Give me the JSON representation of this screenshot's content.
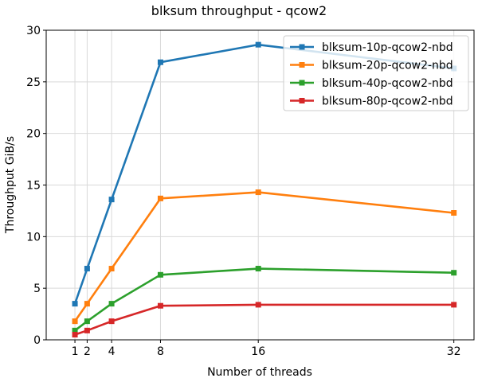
{
  "chart_data": {
    "type": "line",
    "title": "blksum throughput - qcow2",
    "xlabel": "Number of threads",
    "ylabel": "Throughput GiB/s",
    "x": [
      1,
      2,
      4,
      8,
      16,
      32
    ],
    "xticks": [
      1,
      2,
      4,
      8,
      16,
      32
    ],
    "xtick_labels": [
      "1",
      "2",
      "4",
      "8",
      "16",
      "32"
    ],
    "yticks": [
      0,
      5,
      10,
      15,
      20,
      25,
      30
    ],
    "ytick_labels": [
      "0",
      "5",
      "10",
      "15",
      "20",
      "25",
      "30"
    ],
    "xlim": [
      -1.35,
      33.65
    ],
    "ylim": [
      0,
      30
    ],
    "grid": true,
    "legend_position": "top-right",
    "series": [
      {
        "name": "blksum-10p-qcow2-nbd",
        "color": "#1f77b4",
        "values": [
          3.5,
          6.9,
          13.6,
          26.9,
          28.6,
          26.3
        ]
      },
      {
        "name": "blksum-20p-qcow2-nbd",
        "color": "#ff7f0e",
        "values": [
          1.8,
          3.5,
          6.9,
          13.7,
          14.3,
          12.3
        ]
      },
      {
        "name": "blksum-40p-qcow2-nbd",
        "color": "#2ca02c",
        "values": [
          0.9,
          1.8,
          3.5,
          6.3,
          6.9,
          6.5
        ]
      },
      {
        "name": "blksum-80p-qcow2-nbd",
        "color": "#d62728",
        "values": [
          0.5,
          0.9,
          1.8,
          3.3,
          3.4,
          3.4
        ]
      }
    ]
  }
}
